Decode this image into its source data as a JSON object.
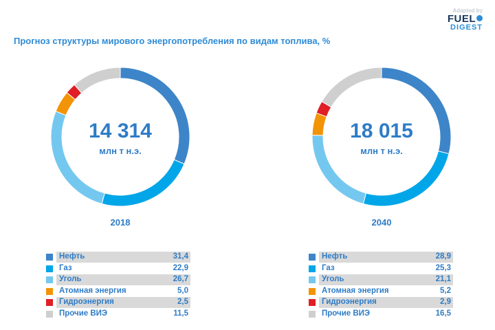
{
  "header": {
    "title": "Прогноз структуры мирового энергопотребления по видам топлива, %",
    "logo": {
      "adapted": "Adapted by",
      "fuel": "FUEL",
      "digest": "DIGEST"
    }
  },
  "chart_data": [
    {
      "type": "pie",
      "style": "donut",
      "year": "2018",
      "total": "14 314",
      "unit": "млн т н.э.",
      "categories": [
        "Нефть",
        "Газ",
        "Уголь",
        "Атомная энергия",
        "Гидроэнергия",
        "Прочие ВИЭ"
      ],
      "values": [
        31.4,
        22.9,
        26.7,
        5.0,
        2.5,
        11.5
      ],
      "labels": [
        "31,4",
        "22,9",
        "26,7",
        "5,0",
        "2,5",
        "11,5"
      ],
      "colors": [
        "#3d85c8",
        "#00a6e8",
        "#74c8ef",
        "#f39406",
        "#e01e25",
        "#cfcfcf"
      ]
    },
    {
      "type": "pie",
      "style": "donut",
      "year": "2040",
      "total": "18 015",
      "unit": "млн т н.э.",
      "categories": [
        "Нефть",
        "Газ",
        "Уголь",
        "Атомная энергия",
        "Гидроэнергия",
        "Прочие ВИЭ"
      ],
      "values": [
        28.9,
        25.3,
        21.1,
        5.2,
        2.9,
        16.5
      ],
      "labels": [
        "28,9",
        "25,3",
        "21,1",
        "5,2",
        "2,9",
        "16,5"
      ],
      "colors": [
        "#3d85c8",
        "#00a6e8",
        "#74c8ef",
        "#f39406",
        "#e01e25",
        "#cfcfcf"
      ]
    }
  ]
}
